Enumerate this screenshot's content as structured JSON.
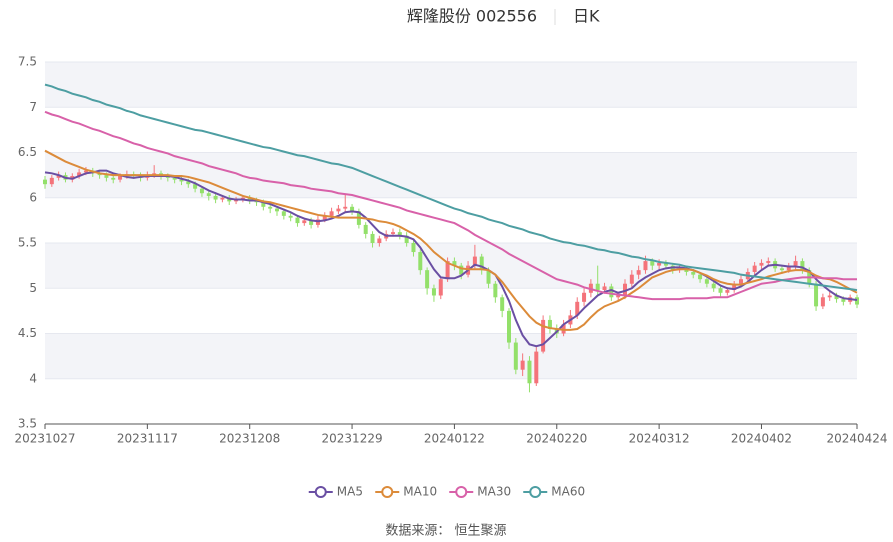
{
  "chart_data": {
    "type": "candlestick",
    "title": "辉隆股份 002556",
    "period": "日K",
    "source": "数据来源： 恒生聚源",
    "up_color": "#f4737a",
    "down_color": "#93e06a",
    "ylim": [
      3.5,
      7.5
    ],
    "yticks": [
      3.5,
      4,
      4.5,
      5,
      5.5,
      6,
      6.5,
      7,
      7.5
    ],
    "grid": true,
    "legend": "bottom",
    "categories": [
      "20231027",
      null,
      null,
      null,
      null,
      null,
      null,
      null,
      null,
      null,
      null,
      null,
      null,
      null,
      null,
      "20231117",
      null,
      null,
      null,
      null,
      null,
      null,
      null,
      null,
      null,
      null,
      null,
      null,
      null,
      null,
      "20231208",
      null,
      null,
      null,
      null,
      null,
      null,
      null,
      null,
      null,
      null,
      null,
      null,
      null,
      null,
      "20231229",
      null,
      null,
      null,
      null,
      null,
      null,
      null,
      null,
      null,
      null,
      null,
      null,
      null,
      null,
      "20240122",
      null,
      null,
      null,
      null,
      null,
      null,
      null,
      null,
      null,
      null,
      null,
      null,
      null,
      null,
      "20240220",
      null,
      null,
      null,
      null,
      null,
      null,
      null,
      null,
      null,
      null,
      null,
      null,
      null,
      null,
      "20240312",
      null,
      null,
      null,
      null,
      null,
      null,
      null,
      null,
      null,
      null,
      null,
      null,
      null,
      null,
      "20240402",
      null,
      null,
      null,
      null,
      null,
      null,
      null,
      null,
      null,
      null,
      null,
      null,
      null,
      "20240424"
    ],
    "open": [
      6.2,
      6.15,
      6.22,
      6.25,
      6.2,
      6.24,
      6.28,
      6.3,
      6.27,
      6.25,
      6.22,
      6.2,
      6.24,
      6.26,
      6.25,
      6.22,
      6.25,
      6.27,
      6.24,
      6.22,
      6.2,
      6.18,
      6.15,
      6.1,
      6.05,
      6.02,
      5.98,
      6.0,
      5.96,
      5.98,
      6.0,
      5.97,
      5.95,
      5.9,
      5.88,
      5.85,
      5.8,
      5.78,
      5.72,
      5.75,
      5.7,
      5.76,
      5.8,
      5.85,
      5.88,
      5.9,
      5.85,
      5.7,
      5.6,
      5.5,
      5.55,
      5.6,
      5.62,
      5.58,
      5.5,
      5.4,
      5.2,
      5.0,
      4.92,
      5.1,
      5.3,
      5.25,
      5.15,
      5.25,
      5.35,
      5.2,
      5.05,
      4.9,
      4.75,
      4.4,
      4.1,
      4.2,
      3.95,
      4.3,
      4.65,
      4.55,
      4.5,
      4.6,
      4.7,
      4.85,
      4.95,
      5.05,
      4.98,
      5.02,
      4.9,
      4.92,
      5.05,
      5.15,
      5.2,
      5.3,
      5.25,
      5.28,
      5.25,
      5.2,
      5.22,
      5.18,
      5.15,
      5.1,
      5.05,
      5.0,
      4.95,
      4.98,
      5.05,
      5.1,
      5.18,
      5.25,
      5.28,
      5.3,
      5.22,
      5.2,
      5.25,
      5.3,
      5.2,
      5.05,
      4.8,
      4.9,
      4.92,
      4.88,
      4.85,
      4.9
    ],
    "close": [
      6.15,
      6.22,
      6.25,
      6.2,
      6.24,
      6.28,
      6.3,
      6.27,
      6.25,
      6.22,
      6.2,
      6.24,
      6.26,
      6.25,
      6.22,
      6.25,
      6.27,
      6.24,
      6.22,
      6.2,
      6.18,
      6.15,
      6.1,
      6.05,
      6.02,
      5.98,
      6.0,
      5.96,
      5.98,
      6.0,
      5.97,
      5.95,
      5.9,
      5.88,
      5.85,
      5.8,
      5.78,
      5.72,
      5.75,
      5.7,
      5.76,
      5.8,
      5.85,
      5.88,
      5.9,
      5.85,
      5.7,
      5.6,
      5.5,
      5.55,
      5.6,
      5.62,
      5.58,
      5.5,
      5.4,
      5.2,
      5.0,
      4.92,
      5.1,
      5.3,
      5.25,
      5.15,
      5.25,
      5.35,
      5.2,
      5.05,
      4.9,
      4.75,
      4.4,
      4.1,
      4.2,
      3.95,
      4.3,
      4.65,
      4.55,
      4.5,
      4.6,
      4.7,
      4.85,
      4.95,
      5.05,
      4.98,
      5.02,
      4.9,
      4.92,
      5.05,
      5.15,
      5.2,
      5.3,
      5.25,
      5.28,
      5.25,
      5.2,
      5.22,
      5.18,
      5.15,
      5.1,
      5.05,
      5.0,
      4.95,
      4.98,
      5.05,
      5.1,
      5.18,
      5.25,
      5.28,
      5.3,
      5.22,
      5.2,
      5.25,
      5.3,
      5.2,
      5.05,
      4.8,
      4.9,
      4.92,
      4.88,
      4.85,
      4.9,
      4.82
    ],
    "low": [
      6.1,
      6.12,
      6.19,
      6.17,
      6.17,
      6.21,
      6.25,
      6.23,
      6.21,
      6.18,
      6.16,
      6.17,
      6.21,
      6.21,
      6.18,
      6.19,
      6.22,
      6.2,
      6.18,
      6.16,
      6.14,
      6.11,
      6.06,
      6.01,
      5.97,
      5.94,
      5.95,
      5.92,
      5.93,
      5.95,
      5.93,
      5.91,
      5.86,
      5.83,
      5.8,
      5.76,
      5.74,
      5.68,
      5.69,
      5.66,
      5.67,
      5.73,
      5.77,
      5.82,
      5.84,
      5.81,
      5.66,
      5.55,
      5.45,
      5.46,
      5.52,
      5.57,
      5.54,
      5.46,
      5.35,
      5.15,
      4.93,
      4.85,
      4.88,
      5.07,
      5.2,
      5.1,
      5.12,
      5.22,
      5.15,
      5.0,
      4.84,
      4.68,
      4.33,
      4.05,
      4.03,
      3.85,
      3.92,
      4.28,
      4.5,
      4.45,
      4.47,
      4.56,
      4.66,
      4.8,
      4.9,
      4.93,
      4.94,
      4.86,
      4.86,
      4.88,
      5.01,
      5.1,
      5.16,
      5.2,
      5.21,
      5.21,
      5.16,
      5.17,
      5.14,
      5.11,
      5.06,
      5.01,
      4.96,
      4.91,
      4.92,
      4.95,
      5.01,
      5.06,
      5.14,
      5.21,
      5.24,
      5.18,
      5.16,
      5.17,
      5.21,
      5.16,
      5.01,
      4.75,
      4.77,
      4.86,
      4.84,
      4.81,
      4.82,
      4.78
    ],
    "high": [
      6.24,
      6.25,
      6.29,
      6.28,
      6.27,
      6.32,
      6.34,
      6.33,
      6.3,
      6.28,
      6.25,
      6.27,
      6.3,
      6.29,
      6.28,
      6.29,
      6.36,
      6.3,
      6.27,
      6.25,
      6.23,
      6.21,
      6.18,
      6.13,
      6.08,
      6.06,
      6.03,
      6.03,
      6.01,
      6.03,
      6.03,
      6.0,
      5.98,
      5.93,
      5.91,
      5.88,
      5.83,
      5.81,
      5.78,
      5.78,
      5.8,
      5.84,
      5.89,
      5.92,
      6.04,
      5.93,
      5.88,
      5.73,
      5.63,
      5.58,
      5.64,
      5.66,
      5.66,
      5.62,
      5.53,
      5.43,
      5.23,
      5.04,
      5.13,
      5.34,
      5.34,
      5.28,
      5.3,
      5.48,
      5.38,
      5.23,
      5.08,
      4.93,
      4.78,
      4.45,
      4.28,
      4.25,
      4.35,
      4.7,
      4.7,
      4.6,
      4.65,
      4.76,
      4.9,
      5.0,
      5.1,
      5.25,
      5.06,
      5.05,
      4.96,
      5.1,
      5.2,
      5.25,
      5.36,
      5.33,
      5.32,
      5.31,
      5.28,
      5.26,
      5.25,
      5.21,
      5.18,
      5.13,
      5.08,
      5.03,
      5.01,
      5.08,
      5.14,
      5.22,
      5.29,
      5.32,
      5.34,
      5.33,
      5.25,
      5.28,
      5.36,
      5.33,
      5.23,
      5.08,
      4.94,
      4.96,
      4.95,
      4.91,
      4.93,
      4.93
    ],
    "series": [
      {
        "name": "MA5",
        "color": "#6a4fa3",
        "values": [
          6.28,
          6.27,
          6.25,
          6.22,
          6.21,
          6.24,
          6.27,
          6.28,
          6.3,
          6.3,
          6.27,
          6.25,
          6.23,
          6.22,
          6.23,
          6.24,
          6.24,
          6.24,
          6.24,
          6.23,
          6.21,
          6.19,
          6.16,
          6.12,
          6.08,
          6.05,
          6.02,
          5.99,
          5.98,
          5.98,
          5.97,
          5.97,
          5.95,
          5.93,
          5.9,
          5.87,
          5.84,
          5.8,
          5.77,
          5.75,
          5.74,
          5.75,
          5.77,
          5.8,
          5.84,
          5.85,
          5.84,
          5.78,
          5.7,
          5.62,
          5.58,
          5.58,
          5.58,
          5.57,
          5.54,
          5.45,
          5.33,
          5.21,
          5.12,
          5.11,
          5.11,
          5.14,
          5.2,
          5.26,
          5.24,
          5.2,
          5.15,
          5.02,
          4.86,
          4.65,
          4.48,
          4.38,
          4.36,
          4.38,
          4.45,
          4.52,
          4.6,
          4.65,
          4.7,
          4.78,
          4.85,
          4.92,
          4.96,
          4.98,
          4.95,
          4.97,
          5.0,
          5.07,
          5.12,
          5.16,
          5.2,
          5.22,
          5.23,
          5.23,
          5.22,
          5.2,
          5.17,
          5.13,
          5.08,
          5.03,
          5.0,
          4.99,
          5.02,
          5.07,
          5.14,
          5.2,
          5.25,
          5.26,
          5.25,
          5.24,
          5.24,
          5.23,
          5.19,
          5.1,
          5.03,
          4.97,
          4.92,
          4.89,
          4.88,
          4.87
        ]
      },
      {
        "name": "MA10",
        "color": "#dc8b3a",
        "values": [
          6.52,
          6.48,
          6.44,
          6.4,
          6.37,
          6.34,
          6.31,
          6.29,
          6.27,
          6.26,
          6.25,
          6.25,
          6.25,
          6.25,
          6.25,
          6.25,
          6.25,
          6.25,
          6.25,
          6.24,
          6.24,
          6.23,
          6.21,
          6.19,
          6.17,
          6.14,
          6.11,
          6.08,
          6.05,
          6.02,
          6.0,
          5.98,
          5.96,
          5.95,
          5.93,
          5.91,
          5.89,
          5.87,
          5.85,
          5.83,
          5.81,
          5.8,
          5.79,
          5.78,
          5.78,
          5.78,
          5.78,
          5.77,
          5.76,
          5.74,
          5.73,
          5.71,
          5.68,
          5.64,
          5.6,
          5.55,
          5.48,
          5.4,
          5.34,
          5.28,
          5.25,
          5.22,
          5.21,
          5.21,
          5.21,
          5.2,
          5.15,
          5.07,
          4.97,
          4.87,
          4.78,
          4.69,
          4.62,
          4.58,
          4.56,
          4.55,
          4.54,
          4.54,
          4.55,
          4.6,
          4.68,
          4.75,
          4.8,
          4.83,
          4.86,
          4.9,
          4.95,
          5.0,
          5.06,
          5.12,
          5.15,
          5.18,
          5.2,
          5.21,
          5.21,
          5.2,
          5.17,
          5.14,
          5.1,
          5.07,
          5.05,
          5.04,
          5.04,
          5.06,
          5.08,
          5.1,
          5.13,
          5.15,
          5.17,
          5.19,
          5.2,
          5.2,
          5.18,
          5.14,
          5.11,
          5.1,
          5.07,
          5.03,
          4.99,
          4.95
        ]
      },
      {
        "name": "MA30",
        "color": "#d861a9",
        "values": [
          6.95,
          6.92,
          6.9,
          6.87,
          6.84,
          6.82,
          6.79,
          6.76,
          6.74,
          6.71,
          6.68,
          6.66,
          6.63,
          6.6,
          6.58,
          6.55,
          6.53,
          6.51,
          6.49,
          6.46,
          6.44,
          6.42,
          6.4,
          6.38,
          6.35,
          6.33,
          6.31,
          6.29,
          6.27,
          6.24,
          6.22,
          6.21,
          6.19,
          6.18,
          6.17,
          6.16,
          6.14,
          6.13,
          6.12,
          6.1,
          6.09,
          6.08,
          6.07,
          6.05,
          6.04,
          6.03,
          6.01,
          5.99,
          5.97,
          5.95,
          5.93,
          5.91,
          5.89,
          5.86,
          5.84,
          5.82,
          5.8,
          5.78,
          5.76,
          5.74,
          5.72,
          5.68,
          5.64,
          5.59,
          5.55,
          5.51,
          5.47,
          5.43,
          5.38,
          5.34,
          5.3,
          5.26,
          5.22,
          5.18,
          5.14,
          5.1,
          5.08,
          5.06,
          5.04,
          5.01,
          4.99,
          4.97,
          4.95,
          4.94,
          4.93,
          4.92,
          4.91,
          4.9,
          4.89,
          4.88,
          4.88,
          4.88,
          4.88,
          4.88,
          4.89,
          4.89,
          4.89,
          4.89,
          4.9,
          4.9,
          4.9,
          4.93,
          4.96,
          4.99,
          5.02,
          5.05,
          5.06,
          5.07,
          5.09,
          5.1,
          5.11,
          5.12,
          5.12,
          5.12,
          5.11,
          5.11,
          5.11,
          5.1,
          5.1,
          5.1
        ]
      },
      {
        "name": "MA60",
        "color": "#4d9ea2",
        "values": [
          7.25,
          7.23,
          7.2,
          7.18,
          7.15,
          7.13,
          7.11,
          7.08,
          7.06,
          7.03,
          7.01,
          6.99,
          6.96,
          6.94,
          6.91,
          6.89,
          6.87,
          6.85,
          6.83,
          6.81,
          6.79,
          6.77,
          6.75,
          6.74,
          6.72,
          6.7,
          6.68,
          6.66,
          6.64,
          6.62,
          6.6,
          6.58,
          6.56,
          6.55,
          6.53,
          6.51,
          6.49,
          6.47,
          6.46,
          6.44,
          6.42,
          6.4,
          6.38,
          6.37,
          6.35,
          6.33,
          6.3,
          6.27,
          6.24,
          6.21,
          6.18,
          6.15,
          6.12,
          6.09,
          6.06,
          6.03,
          6.0,
          5.97,
          5.94,
          5.91,
          5.88,
          5.86,
          5.83,
          5.81,
          5.79,
          5.76,
          5.74,
          5.72,
          5.69,
          5.67,
          5.65,
          5.62,
          5.6,
          5.58,
          5.55,
          5.53,
          5.51,
          5.5,
          5.48,
          5.47,
          5.45,
          5.43,
          5.42,
          5.4,
          5.39,
          5.37,
          5.35,
          5.34,
          5.32,
          5.31,
          5.29,
          5.28,
          5.27,
          5.26,
          5.24,
          5.23,
          5.22,
          5.21,
          5.2,
          5.19,
          5.18,
          5.17,
          5.15,
          5.14,
          5.13,
          5.12,
          5.11,
          5.1,
          5.09,
          5.08,
          5.07,
          5.06,
          5.05,
          5.04,
          5.03,
          5.02,
          5.01,
          5.0,
          4.99,
          4.98
        ]
      }
    ]
  }
}
